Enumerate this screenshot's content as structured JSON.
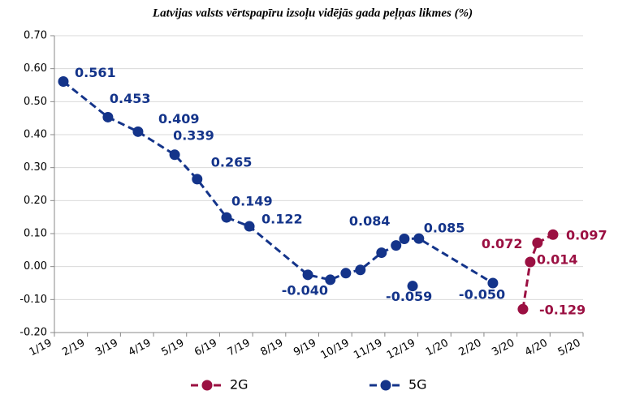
{
  "chart_data": {
    "type": "line",
    "title": "Latvijas valsts vērtspapīru izsoļu vidējās gada peļņas likmes  (%)",
    "xlim": [
      0,
      16
    ],
    "xticks": [
      {
        "value": 0,
        "label": "1/19"
      },
      {
        "value": 1,
        "label": "2/19"
      },
      {
        "value": 2,
        "label": "3/19"
      },
      {
        "value": 3,
        "label": "4/19"
      },
      {
        "value": 4,
        "label": "5/19"
      },
      {
        "value": 5,
        "label": "6/19"
      },
      {
        "value": 6,
        "label": "7/19"
      },
      {
        "value": 7,
        "label": "8/19"
      },
      {
        "value": 8,
        "label": "9/19"
      },
      {
        "value": 9,
        "label": "10/19"
      },
      {
        "value": 10,
        "label": "11/19"
      },
      {
        "value": 11,
        "label": "12/19"
      },
      {
        "value": 12,
        "label": "1/20"
      },
      {
        "value": 13,
        "label": "2/20"
      },
      {
        "value": 14,
        "label": "3/20"
      },
      {
        "value": 15,
        "label": "4/20"
      },
      {
        "value": 16,
        "label": "5/20"
      }
    ],
    "ylim": [
      -0.2,
      0.7
    ],
    "yticks": [
      {
        "value": -0.2,
        "label": "-0.20"
      },
      {
        "value": -0.1,
        "label": "-0.10"
      },
      {
        "value": 0,
        "label": "0.00"
      },
      {
        "value": 0.1,
        "label": "0.10"
      },
      {
        "value": 0.2,
        "label": "0.20"
      },
      {
        "value": 0.3,
        "label": "0.30"
      },
      {
        "value": 0.4,
        "label": "0.40"
      },
      {
        "value": 0.5,
        "label": "0.50"
      },
      {
        "value": 0.6,
        "label": "0.60"
      },
      {
        "value": 0.7,
        "label": "0.70"
      }
    ],
    "grid": true,
    "legend": "bottom",
    "series": [
      {
        "name": "2G",
        "color": "#9b1042",
        "x": [
          14.18,
          14.4,
          14.62,
          15.09
        ],
        "values": [
          -0.129,
          0.014,
          0.072,
          0.097
        ],
        "value_labels": [
          "-0.129",
          "0.014",
          "0.072",
          "0.097"
        ]
      },
      {
        "name": "5G",
        "color": "#14348a",
        "x": [
          0.27,
          1.62,
          2.53,
          3.64,
          4.32,
          5.21,
          5.9,
          7.67,
          8.35,
          8.82,
          9.26,
          9.9,
          10.34,
          10.59,
          11.03,
          13.27,
          10.84,
          10.84
        ],
        "values": [
          0.561,
          0.453,
          0.409,
          0.339,
          0.265,
          0.149,
          0.122,
          -0.025,
          -0.04,
          -0.02,
          -0.01,
          0.042,
          0.064,
          0.084,
          0.085,
          -0.05,
          null,
          -0.059
        ],
        "value_labels": [
          "0.561",
          "0.453",
          "0.409",
          "0.339",
          "0.265",
          "0.149",
          "0.122",
          null,
          "-0.040",
          null,
          null,
          null,
          null,
          "0.084",
          "0.085",
          "-0.050",
          null,
          "-0.059"
        ]
      }
    ]
  }
}
